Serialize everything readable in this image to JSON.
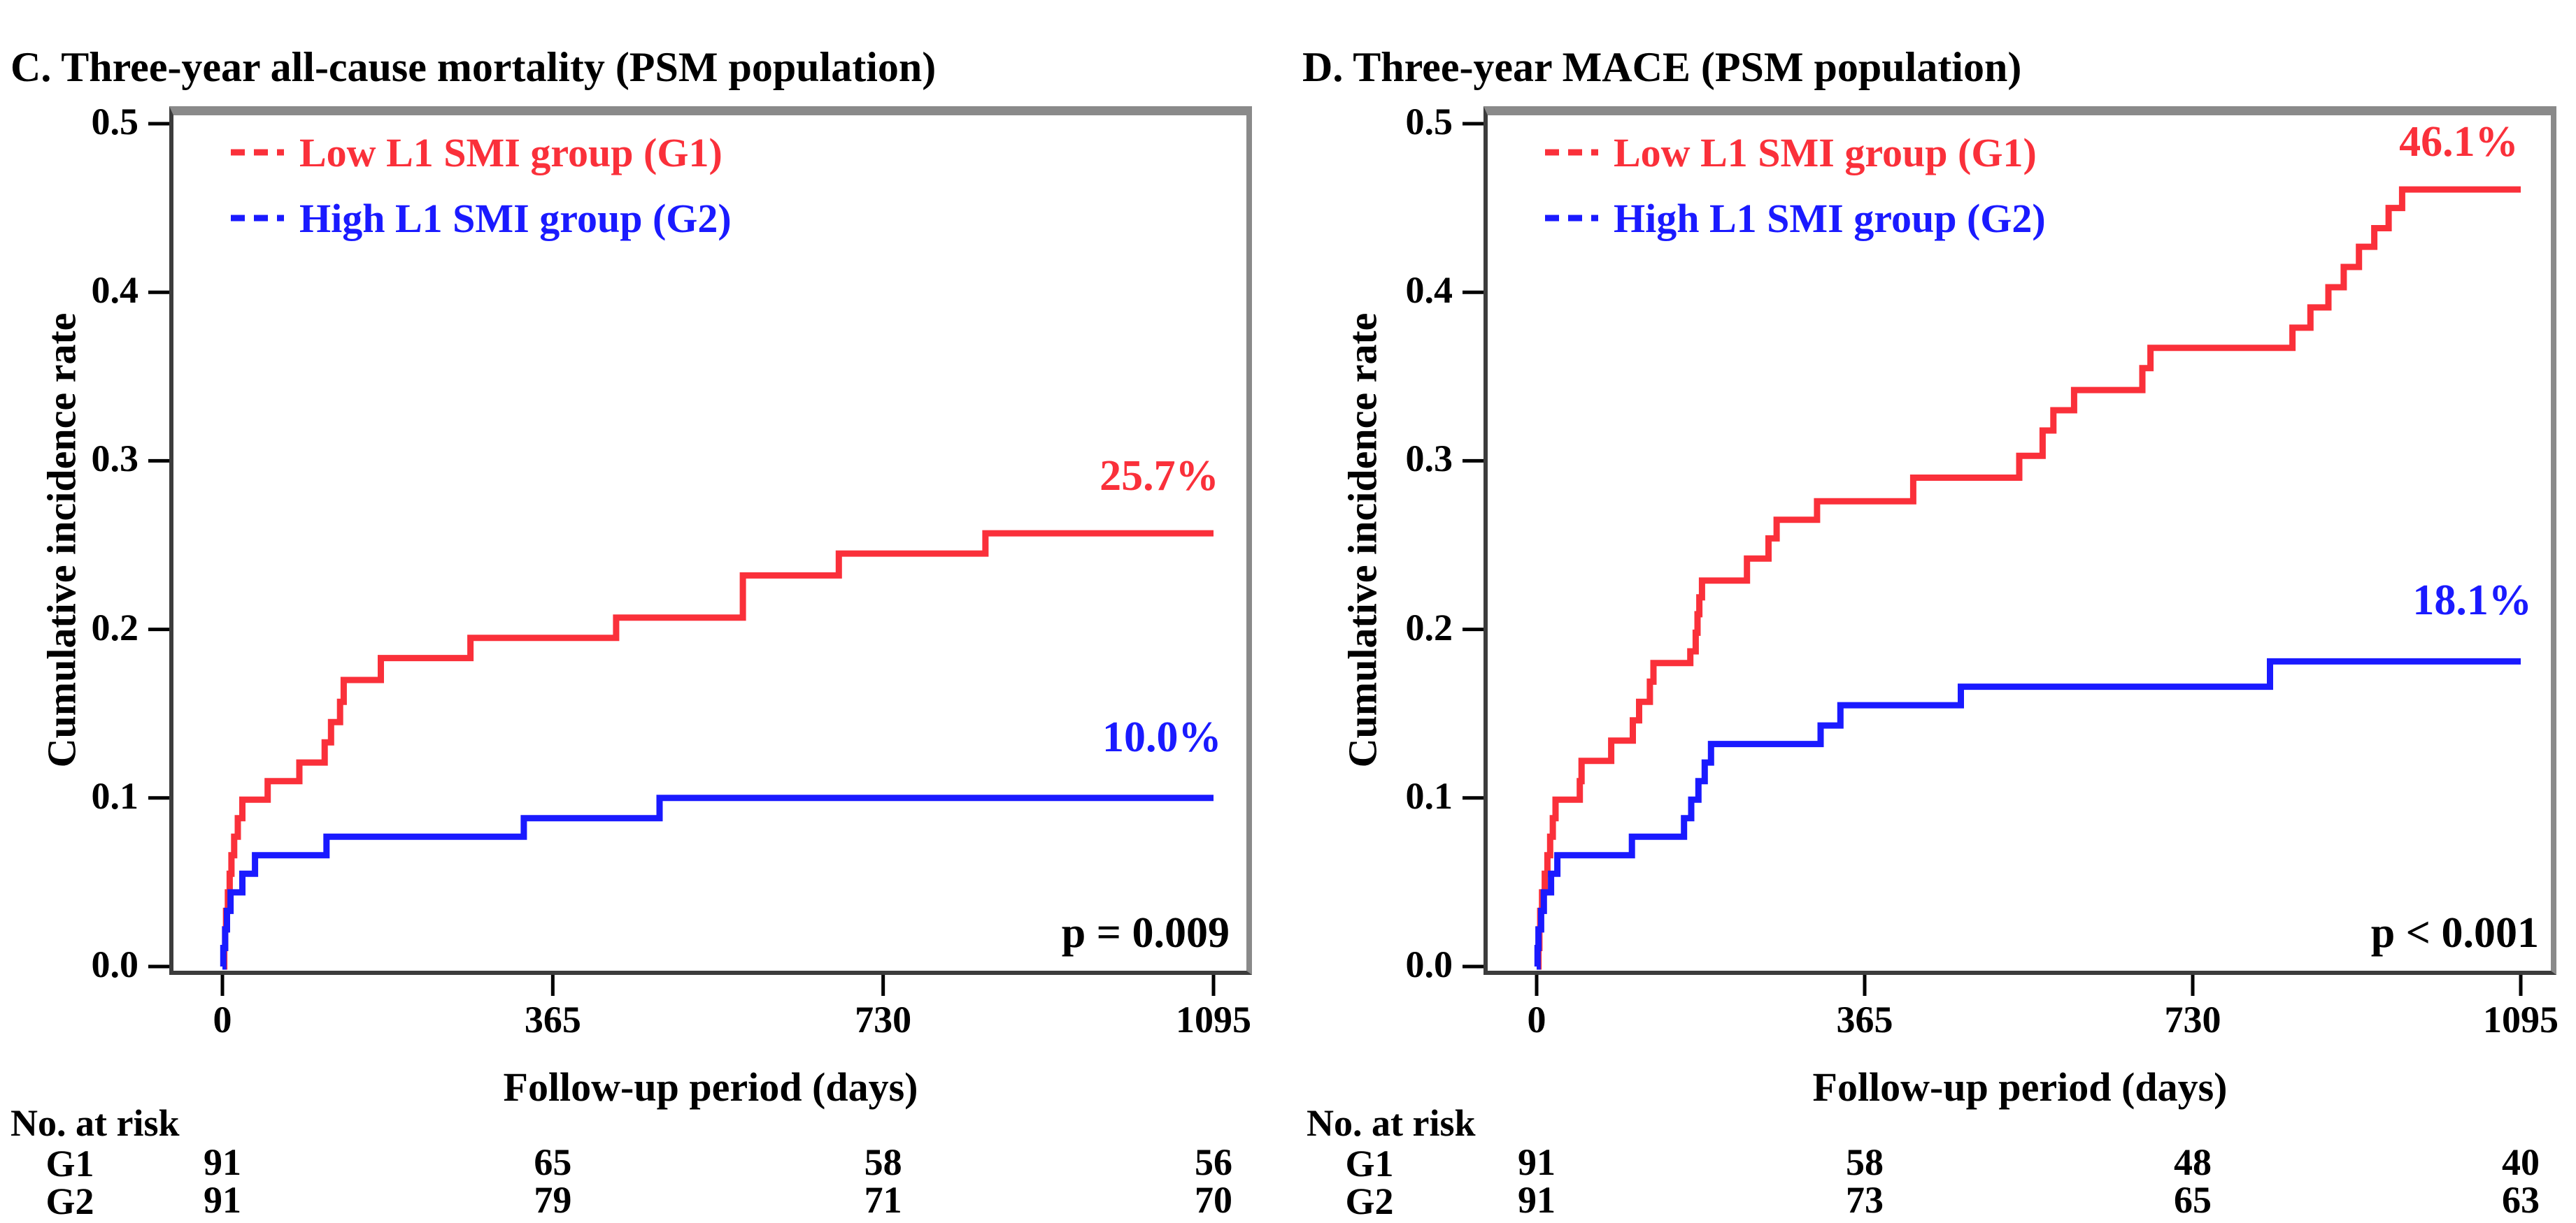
{
  "colors": {
    "g1_red": "#fa303a",
    "g2_blue": "#1a1aff",
    "text": "#000000",
    "frame_dark": "#3c3c3c",
    "frame_gray": "#8a8a8a"
  },
  "chart_data": [
    {
      "panel": "C",
      "type": "line",
      "subtype": "step-cumulative-incidence",
      "title": "C. Three-year all-cause mortality (PSM population)",
      "xlabel": "Follow-up period (days)",
      "ylabel": "Cumulative incidence rate",
      "xlim": [
        0,
        1095
      ],
      "ylim": [
        0.0,
        0.5
      ],
      "xticks": [
        0,
        365,
        730,
        1095
      ],
      "yticks": [
        "0.0",
        "0.1",
        "0.2",
        "0.3",
        "0.4",
        "0.5"
      ],
      "grid": false,
      "legend_position": "top-left",
      "p_label": "p = 0.009",
      "series": [
        {
          "name": "Low L1 SMI group (G1)",
          "color": "#fa303a",
          "final_label": "25.7%",
          "label_pos": [
            1035,
            0.289
          ],
          "points": [
            [
              0,
              0
            ],
            [
              2,
              0.011
            ],
            [
              3,
              0.022
            ],
            [
              4,
              0.033
            ],
            [
              6,
              0.044
            ],
            [
              8,
              0.055
            ],
            [
              10,
              0.066
            ],
            [
              13,
              0.077
            ],
            [
              17,
              0.088
            ],
            [
              22,
              0.099
            ],
            [
              50,
              0.11
            ],
            [
              85,
              0.121
            ],
            [
              113,
              0.133
            ],
            [
              120,
              0.145
            ],
            [
              130,
              0.157
            ],
            [
              134,
              0.17
            ],
            [
              175,
              0.183
            ],
            [
              274,
              0.195
            ],
            [
              435,
              0.207
            ],
            [
              575,
              0.232
            ],
            [
              681,
              0.245
            ],
            [
              843,
              0.257
            ],
            [
              1095,
              0.257
            ]
          ]
        },
        {
          "name": "High L1 SMI group (G2)",
          "color": "#1a1aff",
          "final_label": "10.0%",
          "label_pos": [
            1038,
            0.134
          ],
          "points": [
            [
              0,
              0
            ],
            [
              1,
              0.011
            ],
            [
              3,
              0.022
            ],
            [
              5,
              0.033
            ],
            [
              9,
              0.044
            ],
            [
              22,
              0.055
            ],
            [
              36,
              0.066
            ],
            [
              115,
              0.077
            ],
            [
              333,
              0.088
            ],
            [
              483,
              0.1
            ],
            [
              1095,
              0.1
            ]
          ]
        }
      ],
      "risk_table": {
        "header": "No. at risk",
        "row_labels": [
          "G1",
          "G2"
        ],
        "values": [
          [
            91,
            65,
            58,
            56
          ],
          [
            91,
            79,
            71,
            70
          ]
        ]
      }
    },
    {
      "panel": "D",
      "type": "line",
      "subtype": "step-cumulative-incidence",
      "title": "D. Three-year MACE (PSM population)",
      "xlabel": "Follow-up period (days)",
      "ylabel": "Cumulative incidence rate",
      "xlim": [
        0,
        1095
      ],
      "ylim": [
        0.0,
        0.5
      ],
      "xticks": [
        0,
        365,
        730,
        1095
      ],
      "yticks": [
        "0.0",
        "0.1",
        "0.2",
        "0.3",
        "0.4",
        "0.5"
      ],
      "grid": false,
      "legend_position": "top-left",
      "p_label": "p < 0.001",
      "series": [
        {
          "name": "Low L1 SMI group (G1)",
          "color": "#fa303a",
          "final_label": "46.1%",
          "label_pos": [
            1026,
            0.487
          ],
          "points": [
            [
              0,
              0
            ],
            [
              2,
              0.011
            ],
            [
              3,
              0.022
            ],
            [
              4,
              0.033
            ],
            [
              6,
              0.044
            ],
            [
              9,
              0.055
            ],
            [
              12,
              0.066
            ],
            [
              15,
              0.077
            ],
            [
              18,
              0.088
            ],
            [
              21,
              0.099
            ],
            [
              48,
              0.11
            ],
            [
              50,
              0.122
            ],
            [
              83,
              0.134
            ],
            [
              107,
              0.146
            ],
            [
              114,
              0.157
            ],
            [
              126,
              0.169
            ],
            [
              130,
              0.18
            ],
            [
              171,
              0.187
            ],
            [
              177,
              0.198
            ],
            [
              179,
              0.209
            ],
            [
              181,
              0.219
            ],
            [
              184,
              0.229
            ],
            [
              234,
              0.242
            ],
            [
              258,
              0.254
            ],
            [
              267,
              0.265
            ],
            [
              312,
              0.276
            ],
            [
              419,
              0.29
            ],
            [
              537,
              0.303
            ],
            [
              563,
              0.318
            ],
            [
              575,
              0.33
            ],
            [
              598,
              0.342
            ],
            [
              674,
              0.355
            ],
            [
              683,
              0.367
            ],
            [
              841,
              0.379
            ],
            [
              861,
              0.391
            ],
            [
              881,
              0.403
            ],
            [
              898,
              0.415
            ],
            [
              915,
              0.427
            ],
            [
              932,
              0.438
            ],
            [
              948,
              0.45
            ],
            [
              963,
              0.461
            ],
            [
              1095,
              0.461
            ]
          ]
        },
        {
          "name": "High L1 SMI group (G2)",
          "color": "#1a1aff",
          "final_label": "18.1%",
          "label_pos": [
            1041,
            0.215
          ],
          "points": [
            [
              0,
              0
            ],
            [
              1,
              0.011
            ],
            [
              2,
              0.022
            ],
            [
              5,
              0.033
            ],
            [
              8,
              0.044
            ],
            [
              16,
              0.055
            ],
            [
              23,
              0.066
            ],
            [
              106,
              0.077
            ],
            [
              164,
              0.088
            ],
            [
              172,
              0.099
            ],
            [
              180,
              0.11
            ],
            [
              187,
              0.121
            ],
            [
              194,
              0.132
            ],
            [
              316,
              0.143
            ],
            [
              338,
              0.155
            ],
            [
              472,
              0.166
            ],
            [
              816,
              0.181
            ],
            [
              1095,
              0.181
            ]
          ]
        }
      ],
      "risk_table": {
        "header": "No. at risk",
        "row_labels": [
          "G1",
          "G2"
        ],
        "values": [
          [
            91,
            58,
            48,
            40
          ],
          [
            91,
            73,
            65,
            63
          ]
        ]
      }
    }
  ]
}
